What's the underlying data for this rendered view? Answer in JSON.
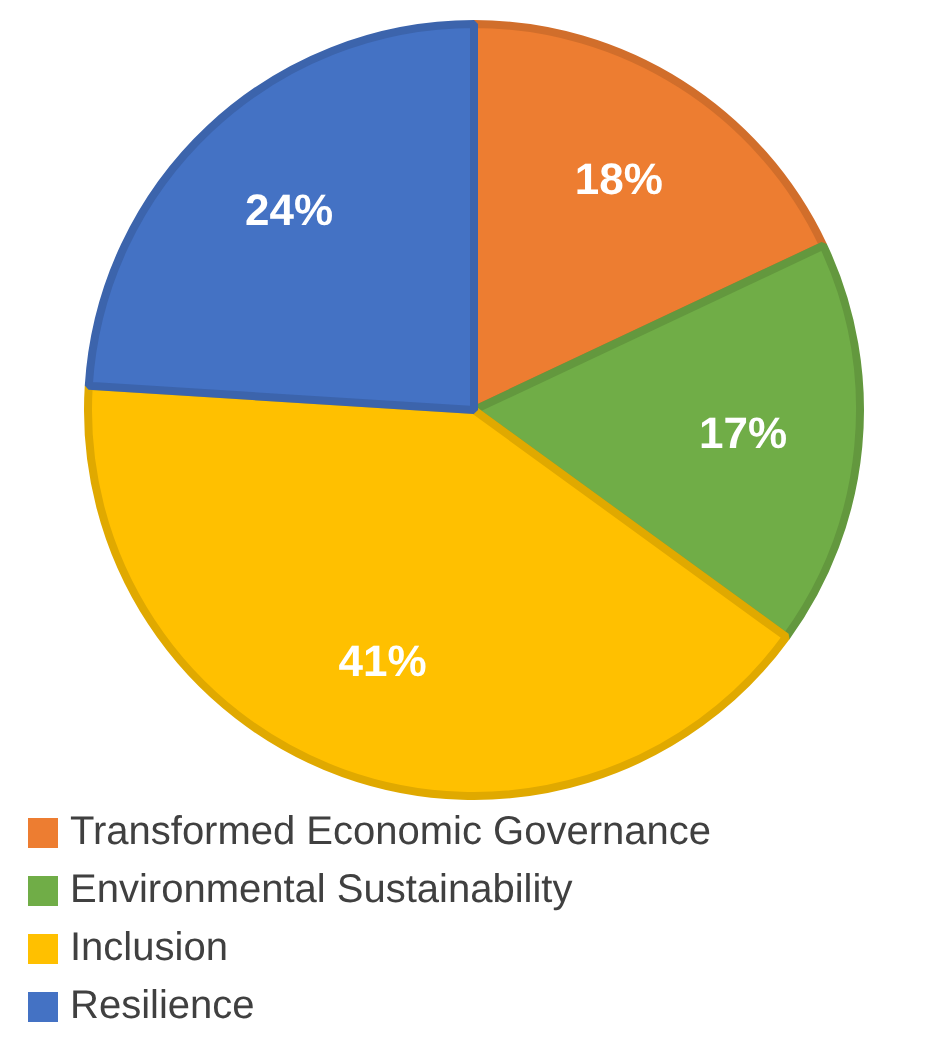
{
  "chart_data": {
    "type": "pie",
    "categories": [
      "Transformed Economic Governance",
      "Environmental Sustainability",
      "Inclusion",
      "Resilience"
    ],
    "values": [
      18,
      17,
      41,
      24
    ],
    "colors": [
      "#ed7d31",
      "#70ad47",
      "#ffc000",
      "#4472c4"
    ],
    "value_labels": [
      "18%",
      "17%",
      "41%",
      "24%"
    ],
    "legend": "bottom"
  }
}
